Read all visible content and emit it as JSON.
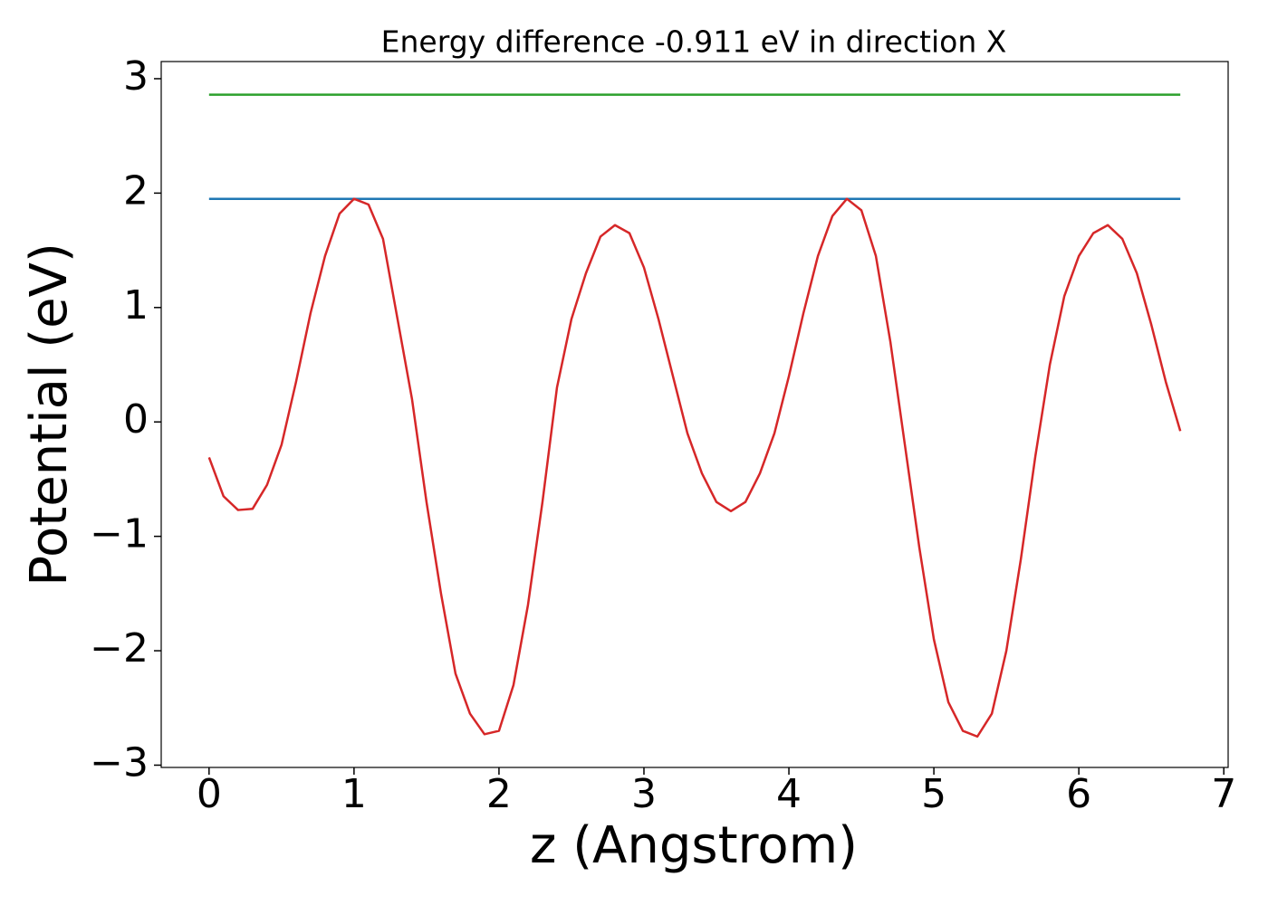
{
  "chart_data": {
    "type": "line",
    "title": "Energy difference -0.911 eV in direction X",
    "x_label": "z (Angstrom)",
    "y_label": "Potential (eV)",
    "xlim": [
      -0.33,
      7.03
    ],
    "ylim": [
      -3.02,
      3.15
    ],
    "xticks": [
      0,
      1,
      2,
      3,
      4,
      5,
      6,
      7
    ],
    "yticks": [
      {
        "value": -3,
        "label": "−3"
      },
      {
        "value": -2,
        "label": "−2"
      },
      {
        "value": -1,
        "label": "−1"
      },
      0,
      1,
      2,
      3
    ],
    "grid": false,
    "series": [
      {
        "color": "#1f77b4",
        "x": [
          0,
          6.7
        ],
        "values": [
          1.95,
          1.95
        ]
      },
      {
        "color": "#2ca02c",
        "x": [
          0,
          6.7
        ],
        "values": [
          2.86,
          2.86
        ]
      },
      {
        "color": "#d62728",
        "x": [
          0,
          0.1,
          0.2,
          0.3,
          0.4,
          0.5,
          0.6,
          0.7,
          0.8,
          0.9,
          1.0,
          1.1,
          1.2,
          1.3,
          1.4,
          1.5,
          1.6,
          1.7,
          1.8,
          1.9,
          2.0,
          2.1,
          2.2,
          2.3,
          2.4,
          2.5,
          2.6,
          2.7,
          2.8,
          2.9,
          3.0,
          3.1,
          3.2,
          3.3,
          3.4,
          3.5,
          3.6,
          3.7,
          3.8,
          3.9,
          4.0,
          4.1,
          4.2,
          4.3,
          4.4,
          4.5,
          4.6,
          4.7,
          4.8,
          4.9,
          5.0,
          5.1,
          5.2,
          5.3,
          5.4,
          5.5,
          5.6,
          5.7,
          5.8,
          5.9,
          6.0,
          6.1,
          6.2,
          6.3,
          6.4,
          6.5,
          6.6,
          6.7
        ],
        "values": [
          -0.31,
          -0.65,
          -0.77,
          -0.76,
          -0.55,
          -0.2,
          0.35,
          0.95,
          1.45,
          1.82,
          1.95,
          1.9,
          1.6,
          0.9,
          0.2,
          -0.7,
          -1.5,
          -2.2,
          -2.55,
          -2.73,
          -2.7,
          -2.3,
          -1.6,
          -0.7,
          0.3,
          0.9,
          1.3,
          1.62,
          1.72,
          1.65,
          1.35,
          0.9,
          0.4,
          -0.1,
          -0.45,
          -0.7,
          -0.78,
          -0.7,
          -0.45,
          -0.1,
          0.4,
          0.95,
          1.45,
          1.8,
          1.95,
          1.85,
          1.45,
          0.7,
          -0.2,
          -1.1,
          -1.9,
          -2.45,
          -2.7,
          -2.75,
          -2.55,
          -2.0,
          -1.2,
          -0.3,
          0.5,
          1.1,
          1.45,
          1.65,
          1.72,
          1.6,
          1.3,
          0.85,
          0.35,
          -0.08
        ]
      }
    ]
  }
}
